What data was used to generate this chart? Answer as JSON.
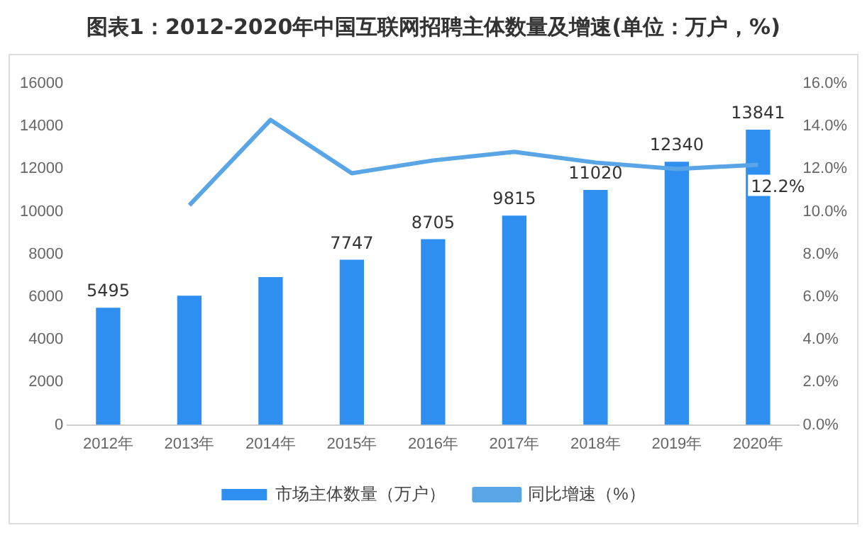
{
  "chart_data": {
    "type": "bar",
    "title": "图表1：2012-2020年中国互联网招聘主体数量及增速(单位：万户，%)",
    "categories": [
      "2012年",
      "2013年",
      "2014年",
      "2015年",
      "2016年",
      "2017年",
      "2018年",
      "2019年",
      "2020年"
    ],
    "series": [
      {
        "name": "市场主体数量（万户）",
        "color": "#2f8ff0",
        "values": [
          5495,
          6060,
          6930,
          7747,
          8705,
          9815,
          11020,
          12340,
          13841
        ],
        "value_labels": [
          "5495",
          null,
          null,
          "7747",
          "8705",
          "9815",
          "11020",
          "12340",
          "13841"
        ]
      },
      {
        "name": "同比增速（%）",
        "type": "line",
        "axis": "y2",
        "color": "#5aa5e6",
        "values": [
          null,
          10.3,
          14.3,
          11.8,
          12.4,
          12.8,
          12.3,
          12.0,
          12.2
        ],
        "value_labels": [
          null,
          null,
          null,
          null,
          null,
          null,
          null,
          null,
          "12.2%"
        ]
      }
    ],
    "ylim": [
      0,
      16000
    ],
    "yticks": [
      0,
      2000,
      4000,
      6000,
      8000,
      10000,
      12000,
      14000,
      16000
    ],
    "y2lim": [
      0,
      16
    ],
    "y2ticks": [
      {
        "value": 0,
        "label": "0.0%"
      },
      {
        "value": 2,
        "label": "2.0%"
      },
      {
        "value": 4,
        "label": "4.0%"
      },
      {
        "value": 6,
        "label": "6.0%"
      },
      {
        "value": 8,
        "label": "8.0%"
      },
      {
        "value": 10,
        "label": "10.0%"
      },
      {
        "value": 12,
        "label": "12.0%"
      },
      {
        "value": 14,
        "label": "14.0%"
      },
      {
        "value": 16,
        "label": "16.0%"
      }
    ],
    "grid": false,
    "legend": "bottom",
    "marker": "none"
  }
}
